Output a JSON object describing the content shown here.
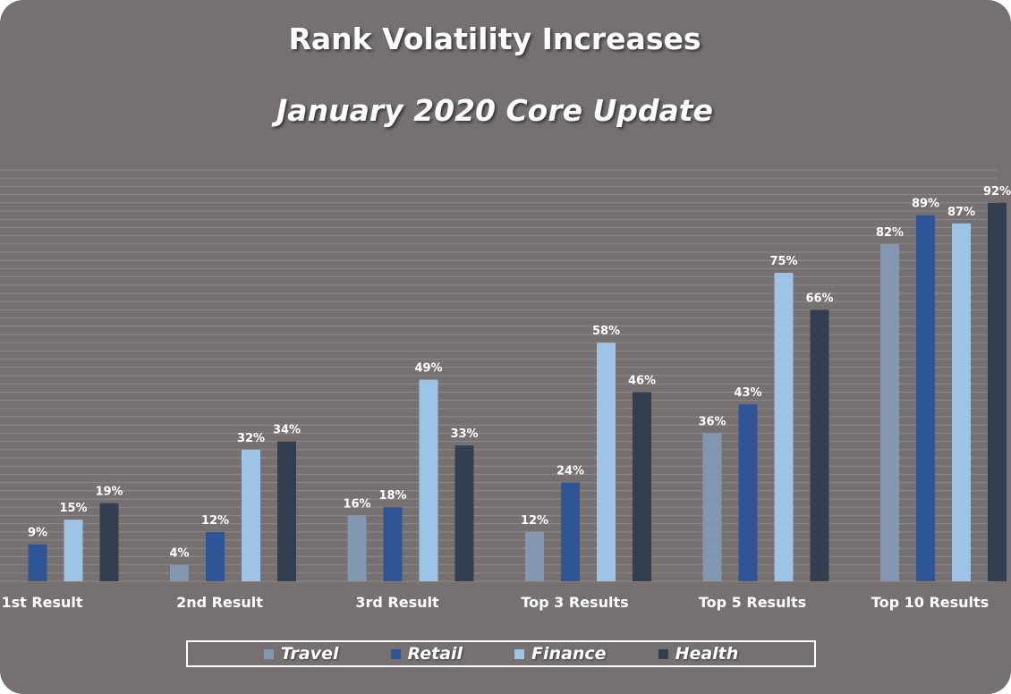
{
  "chart_data": {
    "type": "bar",
    "title": "Rank Volatility Increases",
    "subtitle": "January 2020 Core Update",
    "categories": [
      "1st Result",
      "2nd Result",
      "3rd Result",
      "Top 3 Results",
      "Top 5 Results",
      "Top 10 Results"
    ],
    "series": [
      {
        "name": "Travel",
        "color": "#8497b0",
        "values": [
          null,
          4,
          16,
          12,
          36,
          82
        ]
      },
      {
        "name": "Retail",
        "color": "#2f5597",
        "values": [
          9,
          12,
          18,
          24,
          43,
          89
        ]
      },
      {
        "name": "Finance",
        "color": "#9dc3e6",
        "values": [
          15,
          32,
          49,
          58,
          75,
          87
        ]
      },
      {
        "name": "Health",
        "color": "#333f50",
        "values": [
          19,
          34,
          33,
          46,
          66,
          92
        ]
      }
    ],
    "value_suffix": "%",
    "ylim": [
      0,
      100
    ],
    "grid": true,
    "legend_position": "bottom"
  }
}
